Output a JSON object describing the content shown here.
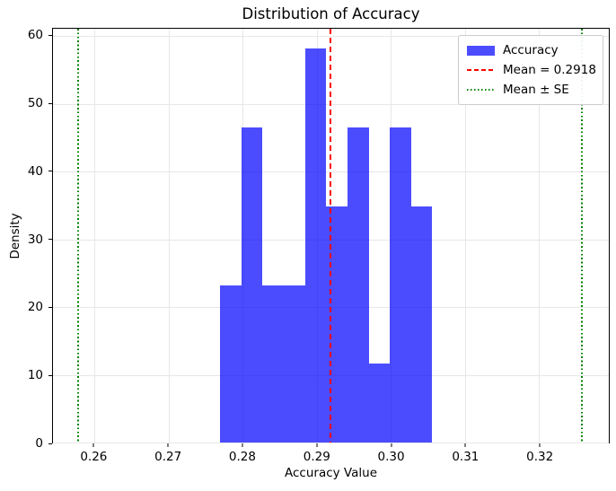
{
  "chart_data": {
    "type": "bar",
    "subtype": "histogram",
    "title": "Distribution of Accuracy",
    "xlabel": "Accuracy Value",
    "ylabel": "Density",
    "series_label": "Accuracy",
    "bin_edges": [
      0.2769,
      0.2798,
      0.2826,
      0.2855,
      0.2884,
      0.2912,
      0.2941,
      0.297,
      0.2998,
      0.3027,
      0.3055
    ],
    "densities": [
      23.26,
      46.51,
      23.26,
      23.26,
      58.14,
      34.88,
      46.51,
      11.63,
      46.51,
      34.88
    ],
    "mean": 0.2918,
    "se": 0.034,
    "mean_minus_se": 0.2578,
    "mean_plus_se": 0.3258,
    "xlim": [
      0.2544,
      0.3294
    ],
    "ylim": [
      0,
      61.1
    ],
    "xtick_values": [
      0.26,
      0.27,
      0.28,
      0.29,
      0.3,
      0.31,
      0.32
    ],
    "xtick_labels": [
      "0.26",
      "0.27",
      "0.28",
      "0.29",
      "0.30",
      "0.31",
      "0.32"
    ],
    "ytick_values": [
      0,
      10,
      20,
      30,
      40,
      50,
      60
    ],
    "ytick_labels": [
      "0",
      "10",
      "20",
      "30",
      "40",
      "50",
      "60"
    ],
    "grid": true,
    "legend": {
      "position": "upper right",
      "items": [
        {
          "label": "Accuracy",
          "swatch": "patch",
          "color": "#0000ff"
        },
        {
          "label": "Mean = 0.2918",
          "swatch": "dashed-line",
          "color": "#ff0000"
        },
        {
          "label": "Mean ± SE",
          "swatch": "dotted-line",
          "color": "#008000"
        }
      ]
    },
    "colors": {
      "bar_fill": "#0000ff",
      "bar_alpha": 0.7,
      "mean_line": "#ff0000",
      "se_line": "#008000",
      "grid": "#e7e7e7",
      "legend_border": "#cccccc",
      "text": "#000000"
    }
  }
}
